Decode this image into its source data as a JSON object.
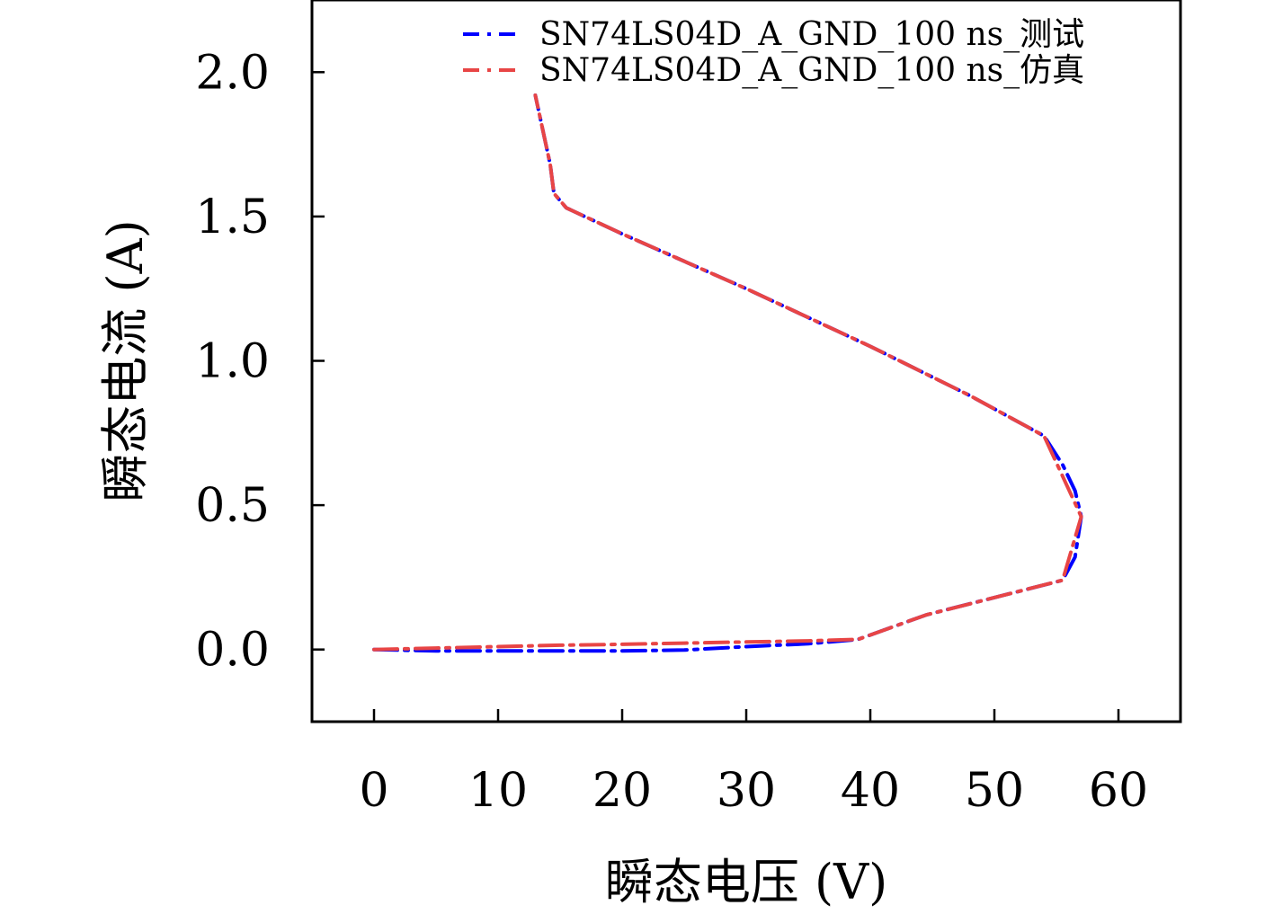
{
  "chart_data": {
    "type": "line",
    "title": "",
    "xlabel": "瞬态电压 (V)",
    "ylabel": "瞬态电流 (A)",
    "xlim": [
      -5,
      65
    ],
    "ylim": [
      -0.25,
      2.25
    ],
    "xticks": [
      0,
      10,
      20,
      30,
      40,
      50,
      60
    ],
    "yticks": [
      0.0,
      0.5,
      1.0,
      1.5,
      2.0
    ],
    "xtick_labels": [
      "0",
      "10",
      "20",
      "30",
      "40",
      "50",
      "60"
    ],
    "ytick_labels": [
      "0.0",
      "0.5",
      "1.0",
      "1.5",
      "2.0"
    ],
    "legend_position": "top-right",
    "series": [
      {
        "name": "SN74LS04D_A_GND_100 ns_测试",
        "color": "#0000ff",
        "style": "dashdot",
        "x": [
          0,
          5,
          10,
          15,
          20,
          25,
          30,
          35,
          39,
          44.5,
          55.5,
          56.5,
          57,
          56.5,
          55.5,
          54,
          48,
          40,
          30,
          20,
          15.5,
          14.5,
          14.2,
          13
        ],
        "y": [
          0,
          -0.005,
          -0.005,
          -0.005,
          -0.005,
          -0.002,
          0.01,
          0.02,
          0.035,
          0.12,
          0.24,
          0.32,
          0.46,
          0.55,
          0.64,
          0.74,
          0.88,
          1.05,
          1.25,
          1.44,
          1.53,
          1.58,
          1.68,
          1.92
        ]
      },
      {
        "name": "SN74LS04D_A_GND_100 ns_仿真",
        "color": "#e84545",
        "style": "dashdot",
        "x": [
          0,
          5,
          10,
          15,
          20,
          25,
          30,
          35,
          39,
          44.5,
          55.5,
          57,
          54,
          48,
          40,
          30,
          20,
          15.5,
          14.5,
          14.2,
          13
        ],
        "y": [
          0,
          0.005,
          0.01,
          0.015,
          0.018,
          0.022,
          0.026,
          0.03,
          0.035,
          0.12,
          0.24,
          0.46,
          0.74,
          0.88,
          1.05,
          1.25,
          1.44,
          1.53,
          1.58,
          1.68,
          1.92
        ]
      }
    ]
  }
}
